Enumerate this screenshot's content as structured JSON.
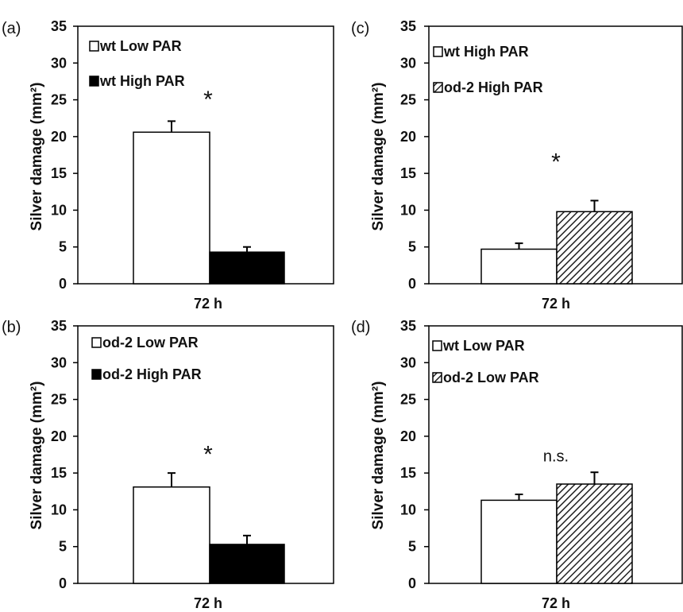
{
  "chart_data": [
    {
      "panel": "(a)",
      "type": "bar",
      "ylabel": "Silver damage (mm²)",
      "xlabel": "72 h",
      "ylim": [
        0,
        35
      ],
      "yticks": [
        "0",
        "5",
        "10",
        "15",
        "20",
        "25",
        "30",
        "35"
      ],
      "legend_position": "top-left",
      "series": [
        {
          "name": "wt Low PAR",
          "value": 20.6,
          "error": 1.5,
          "fill": "#ffffff",
          "pattern": "none"
        },
        {
          "name": "wt High PAR",
          "value": 4.3,
          "error": 0.7,
          "fill": "#000000",
          "pattern": "none"
        }
      ],
      "annotation": "*",
      "annotation_y": 24
    },
    {
      "panel": "(c)",
      "type": "bar",
      "ylabel": "Silver damage (mm²)",
      "xlabel": "72 h",
      "ylim": [
        0,
        35
      ],
      "yticks": [
        "0",
        "5",
        "10",
        "15",
        "20",
        "25",
        "30",
        "35"
      ],
      "legend_position": "top-left",
      "series": [
        {
          "name": "wt High PAR",
          "value": 4.7,
          "error": 0.8,
          "fill": "#ffffff",
          "pattern": "none"
        },
        {
          "name": "od-2 High PAR",
          "value": 9.8,
          "error": 1.5,
          "fill": "#ffffff",
          "pattern": "hatch"
        }
      ],
      "annotation": "*",
      "annotation_y": 15.5
    },
    {
      "panel": "(b)",
      "type": "bar",
      "ylabel": "Silver damage (mm²)",
      "xlabel": "72 h",
      "ylim": [
        0,
        35
      ],
      "yticks": [
        "0",
        "5",
        "10",
        "15",
        "20",
        "25",
        "30",
        "35"
      ],
      "legend_position": "top-left",
      "series": [
        {
          "name": "od-2 Low PAR",
          "value": 13.1,
          "error": 1.9,
          "fill": "#ffffff",
          "pattern": "none"
        },
        {
          "name": "od-2 High PAR",
          "value": 5.3,
          "error": 1.2,
          "fill": "#000000",
          "pattern": "none"
        }
      ],
      "annotation": "*",
      "annotation_y": 16.5
    },
    {
      "panel": "(d)",
      "type": "bar",
      "ylabel": "Silver damage (mm²)",
      "xlabel": "72 h",
      "ylim": [
        0,
        35
      ],
      "yticks": [
        "0",
        "5",
        "10",
        "15",
        "20",
        "25",
        "30",
        "35"
      ],
      "legend_position": "top-left",
      "series": [
        {
          "name": "wt Low PAR",
          "value": 11.3,
          "error": 0.8,
          "fill": "#ffffff",
          "pattern": "none"
        },
        {
          "name": "od-2 Low PAR",
          "value": 13.5,
          "error": 1.6,
          "fill": "#ffffff",
          "pattern": "hatch"
        }
      ],
      "annotation": "n.s.",
      "annotation_y": 16.6
    }
  ]
}
